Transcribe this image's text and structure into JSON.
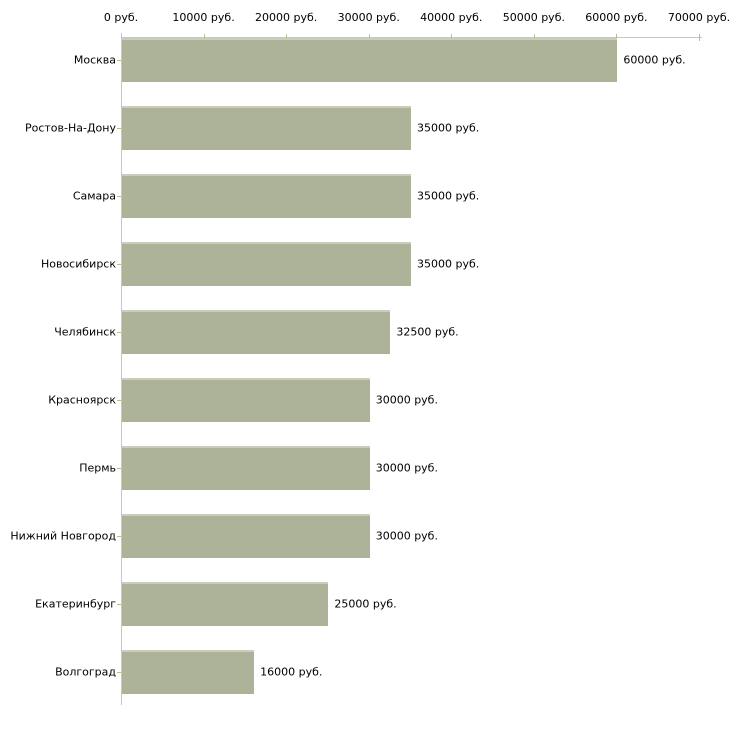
{
  "chart_data": {
    "type": "bar",
    "orientation": "horizontal",
    "title": "",
    "xlabel": "",
    "ylabel": "",
    "xlim": [
      0,
      70000
    ],
    "x_tick_step": 10000,
    "x_tick_labels": [
      "0 руб.",
      "10000 руб.",
      "20000 руб.",
      "30000 руб.",
      "40000 руб.",
      "50000 руб.",
      "60000 руб.",
      "70000 руб."
    ],
    "unit_suffix": " руб.",
    "categories": [
      "Москва",
      "Ростов-На-Дону",
      "Самара",
      "Новосибирск",
      "Челябинск",
      "Красноярск",
      "Пермь",
      "Нижний Новгород",
      "Екатеринбург",
      "Волгоград"
    ],
    "values": [
      60000,
      35000,
      35000,
      35000,
      32500,
      30000,
      30000,
      30000,
      25000,
      16000
    ],
    "value_labels": [
      "60000 руб.",
      "35000 руб.",
      "35000 руб.",
      "35000 руб.",
      "32500 руб.",
      "30000 руб.",
      "30000 руб.",
      "30000 руб.",
      "25000 руб.",
      "16000 руб."
    ],
    "grid": false,
    "legend": null,
    "colors": {
      "bar_fill": "#acb399",
      "bar_highlight": "#c9cdbb",
      "axis_line": "#c6c6c6",
      "tick_mark": "#b9bc93",
      "text": "#000000",
      "background": "#ffffff"
    }
  }
}
